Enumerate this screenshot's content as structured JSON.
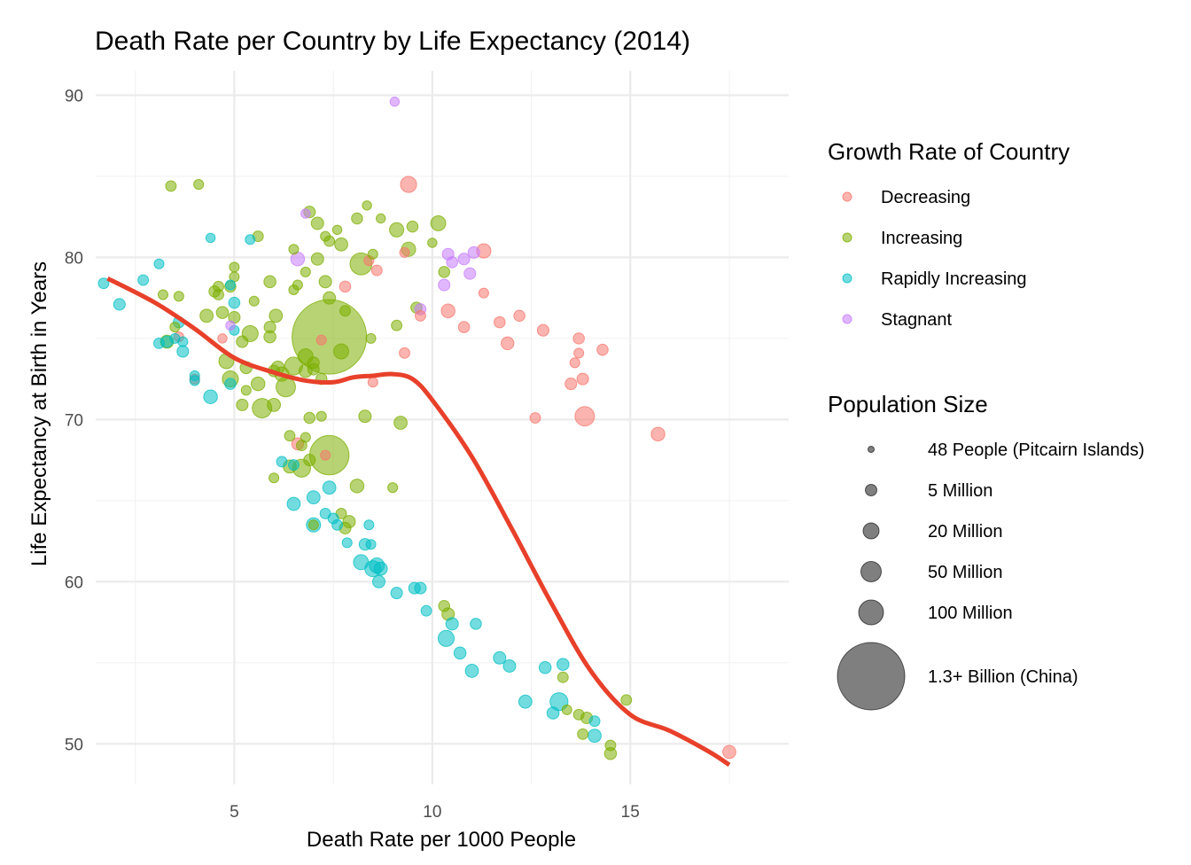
{
  "chart_data": {
    "type": "scatter",
    "title": "Death Rate per Country by Life Expectancy (2014)",
    "xlabel": "Death Rate per 1000 People",
    "ylabel": "Life Expectancy at Birth in Years",
    "xlim": [
      1.5,
      19.0
    ],
    "ylim": [
      47.5,
      91.5
    ],
    "x_ticks": [
      5,
      10,
      15
    ],
    "y_ticks": [
      50,
      60,
      70,
      80,
      90
    ],
    "grid": true,
    "legend_position": "right",
    "color_legend": {
      "title": "Growth Rate of Country",
      "items": [
        {
          "label": "Decreasing",
          "color": "#F8766D"
        },
        {
          "label": "Increasing",
          "color": "#7CAE00"
        },
        {
          "label": "Rapidly Increasing",
          "color": "#00BFC4"
        },
        {
          "label": "Stagnant",
          "color": "#C77CFF"
        }
      ]
    },
    "size_legend": {
      "title": "Population Size",
      "items": [
        {
          "label": "48 People (Pitcairn Islands)",
          "population_millions": 4.8e-05
        },
        {
          "label": "5 Million",
          "population_millions": 5
        },
        {
          "label": "20 Million",
          "population_millions": 20
        },
        {
          "label": "50 Million",
          "population_millions": 50
        },
        {
          "label": "100 Million",
          "population_millions": 100
        },
        {
          "label": "1.3+ Billion (China)",
          "population_millions": 1355
        }
      ]
    },
    "trend_line": {
      "color": "#E8402A",
      "x": [
        1.8,
        3,
        4,
        5,
        6,
        6.8,
        7.5,
        8,
        8.5,
        9,
        9.5,
        10,
        11,
        12,
        13,
        14,
        15,
        16,
        17,
        17.5
      ],
      "y": [
        78.7,
        77.2,
        75.6,
        73.8,
        72.9,
        72.4,
        72.3,
        72.6,
        72.7,
        72.8,
        72.5,
        71.2,
        67.7,
        63.3,
        58.7,
        54.5,
        51.8,
        50.8,
        49.5,
        48.7
      ]
    },
    "series": [
      {
        "name": "Decreasing",
        "points": [
          [
            9.4,
            84.5,
            20
          ],
          [
            11.3,
            80.4,
            12
          ],
          [
            8.4,
            79.8,
            1
          ],
          [
            8.6,
            79.2,
            2
          ],
          [
            9.3,
            80.3,
            1
          ],
          [
            11.3,
            77.8,
            1
          ],
          [
            10.4,
            76.7,
            10
          ],
          [
            9.7,
            76.4,
            2
          ],
          [
            10.8,
            75.7,
            3
          ],
          [
            11.7,
            76.0,
            3
          ],
          [
            12.2,
            76.4,
            3
          ],
          [
            12.8,
            75.5,
            4
          ],
          [
            11.9,
            74.7,
            7
          ],
          [
            13.7,
            75.0,
            3
          ],
          [
            14.3,
            74.3,
            3
          ],
          [
            13.7,
            74.1,
            1
          ],
          [
            13.6,
            73.5,
            1
          ],
          [
            13.8,
            72.5,
            4
          ],
          [
            13.5,
            72.2,
            4
          ],
          [
            12.6,
            70.1,
            2
          ],
          [
            13.85,
            70.2,
            40
          ],
          [
            15.7,
            69.1,
            10
          ],
          [
            9.3,
            74.1,
            2
          ],
          [
            8.5,
            72.3,
            1
          ],
          [
            7.8,
            78.2,
            3
          ],
          [
            7.2,
            74.9,
            1
          ],
          [
            6.6,
            68.5,
            5
          ],
          [
            7.3,
            67.8,
            1
          ],
          [
            4.0,
            72.5,
            1
          ],
          [
            3.6,
            75.1,
            1
          ],
          [
            4.7,
            75.0,
            0.5
          ],
          [
            17.5,
            49.5,
            8
          ]
        ]
      },
      {
        "name": "Increasing",
        "points": [
          [
            3.4,
            84.4,
            2
          ],
          [
            4.1,
            84.5,
            1
          ],
          [
            5.6,
            81.3,
            2
          ],
          [
            6.9,
            82.8,
            4
          ],
          [
            7.1,
            82.1,
            6
          ],
          [
            8.1,
            82.4,
            3
          ],
          [
            8.35,
            83.2,
            0.5
          ],
          [
            8.7,
            82.4,
            0.5
          ],
          [
            9.1,
            81.7,
            12
          ],
          [
            9.5,
            81.9,
            3
          ],
          [
            10.15,
            82.1,
            15
          ],
          [
            7.3,
            81.3,
            1
          ],
          [
            7.6,
            81.7,
            0.5
          ],
          [
            6.5,
            80.5,
            1
          ],
          [
            7.4,
            81.0,
            2
          ],
          [
            7.7,
            80.8,
            8
          ],
          [
            8.2,
            79.6,
            60
          ],
          [
            8.5,
            80.2,
            1
          ],
          [
            9.4,
            80.5,
            12
          ],
          [
            10.0,
            80.9,
            0.5
          ],
          [
            7.1,
            79.9,
            6
          ],
          [
            6.8,
            79.1,
            1
          ],
          [
            5.0,
            79.4,
            1
          ],
          [
            5.0,
            78.8,
            1
          ],
          [
            5.9,
            78.5,
            5
          ],
          [
            4.6,
            78.2,
            2
          ],
          [
            4.9,
            78.2,
            3
          ],
          [
            6.5,
            78.0,
            1
          ],
          [
            6.6,
            78.3,
            1
          ],
          [
            7.3,
            78.5,
            6
          ],
          [
            7.4,
            77.5,
            6
          ],
          [
            10.3,
            79.1,
            3
          ],
          [
            4.6,
            77.7,
            2
          ],
          [
            4.5,
            77.9,
            3
          ],
          [
            3.2,
            77.7,
            1
          ],
          [
            3.6,
            77.6,
            1
          ],
          [
            5.5,
            77.3,
            1
          ],
          [
            4.3,
            76.4,
            8
          ],
          [
            4.7,
            76.6,
            5
          ],
          [
            5.0,
            76.3,
            4
          ],
          [
            6.05,
            76.4,
            8
          ],
          [
            7.8,
            76.7,
            2
          ],
          [
            9.6,
            76.9,
            3
          ],
          [
            3.5,
            75.7,
            1
          ],
          [
            5.4,
            75.3,
            20
          ],
          [
            5.9,
            75.7,
            4
          ],
          [
            5.9,
            75.1,
            5
          ],
          [
            7.4,
            75.1,
            1355
          ],
          [
            7.7,
            74.2,
            15
          ],
          [
            8.45,
            75.0,
            1
          ],
          [
            9.1,
            75.8,
            2
          ],
          [
            3.3,
            74.8,
            8
          ],
          [
            4.8,
            73.6,
            15
          ],
          [
            5.3,
            73.2,
            5
          ],
          [
            5.2,
            74.8,
            4
          ],
          [
            6.0,
            73.0,
            4
          ],
          [
            6.1,
            73.2,
            8
          ],
          [
            6.2,
            72.8,
            12
          ],
          [
            6.8,
            73.0,
            8
          ],
          [
            7.0,
            73.5,
            4
          ],
          [
            4.9,
            72.5,
            20
          ],
          [
            5.6,
            72.2,
            10
          ],
          [
            6.3,
            72.0,
            40
          ],
          [
            6.5,
            73.3,
            30
          ],
          [
            6.8,
            73.9,
            15
          ],
          [
            7.0,
            73.1,
            4
          ],
          [
            7.2,
            72.5,
            3
          ],
          [
            5.3,
            71.8,
            1
          ],
          [
            5.7,
            70.7,
            40
          ],
          [
            5.2,
            70.9,
            4
          ],
          [
            6.0,
            70.9,
            8
          ],
          [
            6.9,
            70.1,
            3
          ],
          [
            8.3,
            70.2,
            6
          ],
          [
            9.2,
            69.8,
            8
          ],
          [
            6.4,
            69.0,
            2
          ],
          [
            6.7,
            68.4,
            2
          ],
          [
            6.8,
            68.9,
            1
          ],
          [
            7.2,
            70.2,
            1
          ],
          [
            7.4,
            67.8,
            300
          ],
          [
            6.9,
            67.5,
            4
          ],
          [
            6.4,
            67.1,
            8
          ],
          [
            6.7,
            67.0,
            30
          ],
          [
            6.0,
            66.4,
            1
          ],
          [
            8.1,
            65.9,
            10
          ],
          [
            9.0,
            65.8,
            1
          ],
          [
            7.7,
            64.2,
            2
          ],
          [
            7.9,
            63.7,
            6
          ],
          [
            7.8,
            63.3,
            4
          ],
          [
            7.0,
            63.5,
            1
          ],
          [
            10.3,
            58.5,
            3
          ],
          [
            10.4,
            58.0,
            6
          ],
          [
            13.3,
            54.1,
            2
          ],
          [
            13.7,
            51.8,
            2
          ],
          [
            13.9,
            51.6,
            4
          ],
          [
            13.4,
            52.1,
            1
          ],
          [
            14.9,
            52.7,
            2
          ],
          [
            13.8,
            50.6,
            2
          ],
          [
            14.5,
            49.9,
            2
          ],
          [
            14.5,
            49.4,
            5
          ]
        ]
      },
      {
        "name": "Rapidly Increasing",
        "points": [
          [
            1.7,
            78.4,
            2
          ],
          [
            2.1,
            77.1,
            4
          ],
          [
            2.7,
            78.6,
            2
          ],
          [
            3.1,
            79.6,
            1
          ],
          [
            4.4,
            81.2,
            0.5
          ],
          [
            5.4,
            81.1,
            1
          ],
          [
            4.9,
            78.3,
            1
          ],
          [
            3.6,
            76.0,
            3
          ],
          [
            3.1,
            74.7,
            2
          ],
          [
            3.3,
            74.8,
            4
          ],
          [
            3.5,
            75.0,
            1
          ],
          [
            3.7,
            74.2,
            4
          ],
          [
            3.7,
            74.8,
            1
          ],
          [
            4.0,
            72.7,
            1
          ],
          [
            4.0,
            72.4,
            1
          ],
          [
            4.4,
            71.4,
            10
          ],
          [
            4.9,
            72.2,
            3
          ],
          [
            5.0,
            77.2,
            3
          ],
          [
            5.0,
            75.5,
            1
          ],
          [
            6.2,
            67.4,
            2
          ],
          [
            6.5,
            67.2,
            2
          ],
          [
            6.5,
            64.8,
            8
          ],
          [
            7.0,
            65.2,
            8
          ],
          [
            7.4,
            65.8,
            8
          ],
          [
            7.3,
            64.2,
            2
          ],
          [
            7.0,
            63.5,
            12
          ],
          [
            7.5,
            63.9,
            2
          ],
          [
            7.6,
            63.5,
            2
          ],
          [
            7.85,
            62.4,
            1
          ],
          [
            8.3,
            62.3,
            4
          ],
          [
            8.45,
            62.3,
            1
          ],
          [
            8.4,
            63.5,
            1
          ],
          [
            8.2,
            61.2,
            15
          ],
          [
            8.5,
            60.8,
            20
          ],
          [
            8.6,
            61.0,
            15
          ],
          [
            8.7,
            60.8,
            8
          ],
          [
            8.65,
            60.0,
            6
          ],
          [
            9.1,
            59.3,
            4
          ],
          [
            9.55,
            59.6,
            4
          ],
          [
            9.7,
            59.6,
            4
          ],
          [
            9.85,
            58.2,
            2
          ],
          [
            10.35,
            56.5,
            20
          ],
          [
            10.5,
            57.4,
            6
          ],
          [
            10.7,
            55.6,
            5
          ],
          [
            11.0,
            54.5,
            8
          ],
          [
            11.1,
            57.4,
            3
          ],
          [
            11.7,
            55.3,
            6
          ],
          [
            11.95,
            54.8,
            6
          ],
          [
            12.35,
            52.6,
            8
          ],
          [
            12.85,
            54.7,
            5
          ],
          [
            13.3,
            54.9,
            5
          ],
          [
            13.05,
            51.9,
            5
          ],
          [
            13.2,
            52.6,
            30
          ],
          [
            14.1,
            51.4,
            2
          ],
          [
            14.1,
            50.5,
            8
          ]
        ]
      },
      {
        "name": "Stagnant",
        "points": [
          [
            9.05,
            89.6,
            0.5
          ],
          [
            6.8,
            82.7,
            0.5
          ],
          [
            6.6,
            79.9,
            10
          ],
          [
            10.4,
            80.2,
            4
          ],
          [
            10.5,
            79.7,
            3
          ],
          [
            10.8,
            79.9,
            4
          ],
          [
            11.05,
            80.3,
            4
          ],
          [
            10.95,
            79.0,
            4
          ],
          [
            10.3,
            78.3,
            4
          ],
          [
            9.7,
            76.8,
            3
          ],
          [
            4.9,
            75.8,
            0.5
          ]
        ]
      }
    ]
  }
}
